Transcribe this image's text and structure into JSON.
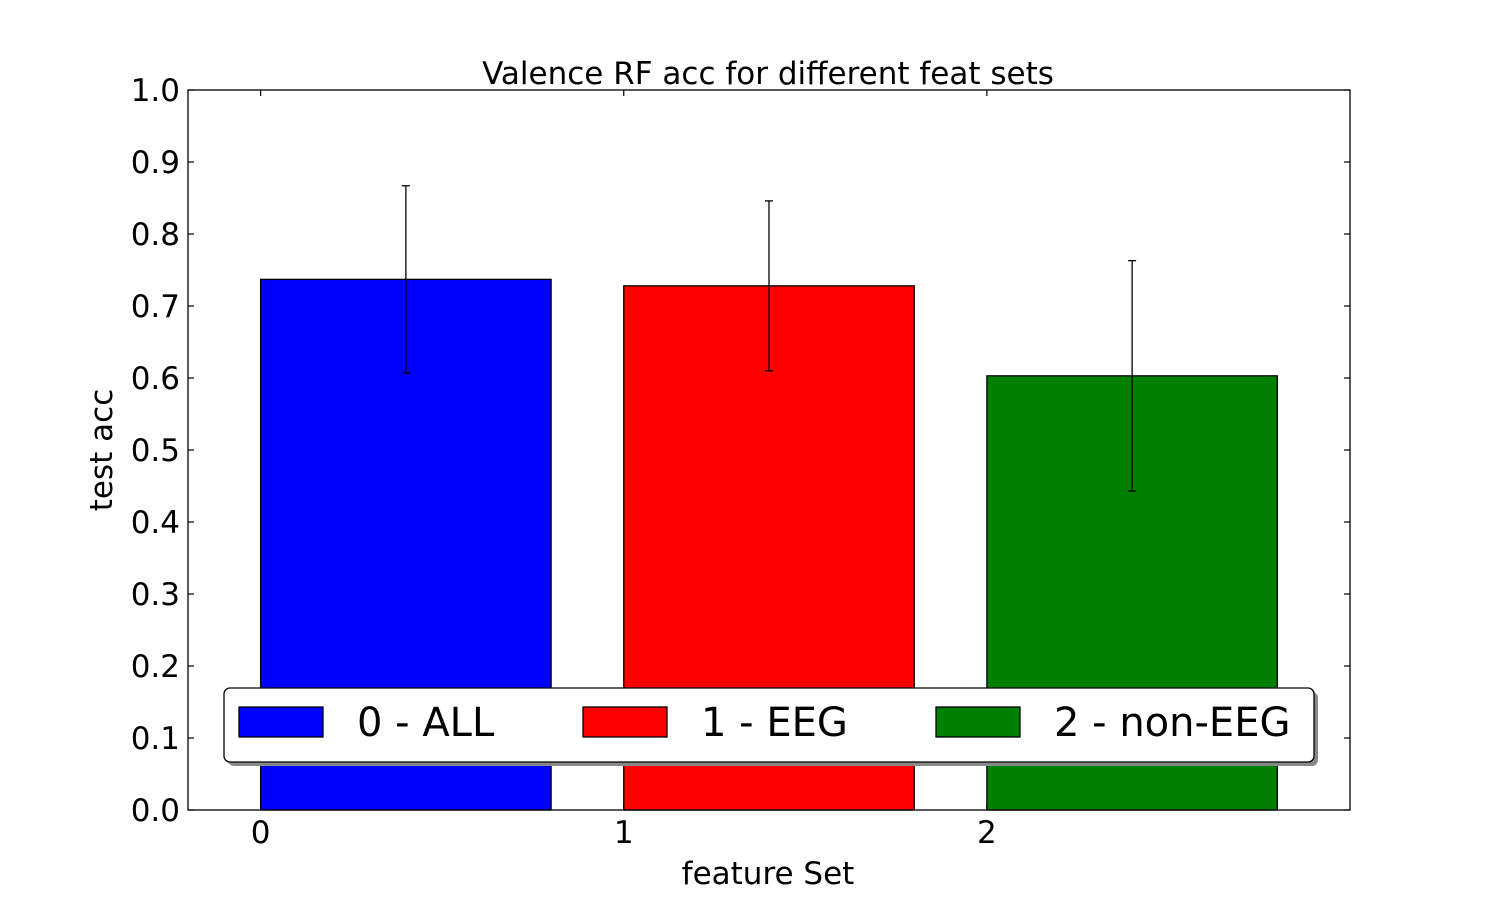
{
  "chart_data": {
    "type": "bar",
    "title": "Valence RF acc for different feat sets",
    "xlabel": "feature Set",
    "ylabel": "test acc",
    "ylim": [
      0.0,
      1.0
    ],
    "xlim": [
      -0.2,
      3.0
    ],
    "yticks": [
      "0.0",
      "0.1",
      "0.2",
      "0.3",
      "0.4",
      "0.5",
      "0.6",
      "0.7",
      "0.8",
      "0.9",
      "1.0"
    ],
    "xticks": [
      "0",
      "1",
      "2"
    ],
    "bar_width": 0.8,
    "grid": false,
    "legend_placement": "lower-center",
    "series": [
      {
        "name": "0 - ALL",
        "x": 0,
        "value": 0.737,
        "error": 0.13,
        "color": "#0000ff"
      },
      {
        "name": "1 - EEG",
        "x": 1,
        "value": 0.728,
        "error": 0.118,
        "color": "#ff0000"
      },
      {
        "name": "2 - non-EEG",
        "x": 2,
        "value": 0.603,
        "error": 0.16,
        "color": "#008000"
      }
    ]
  }
}
